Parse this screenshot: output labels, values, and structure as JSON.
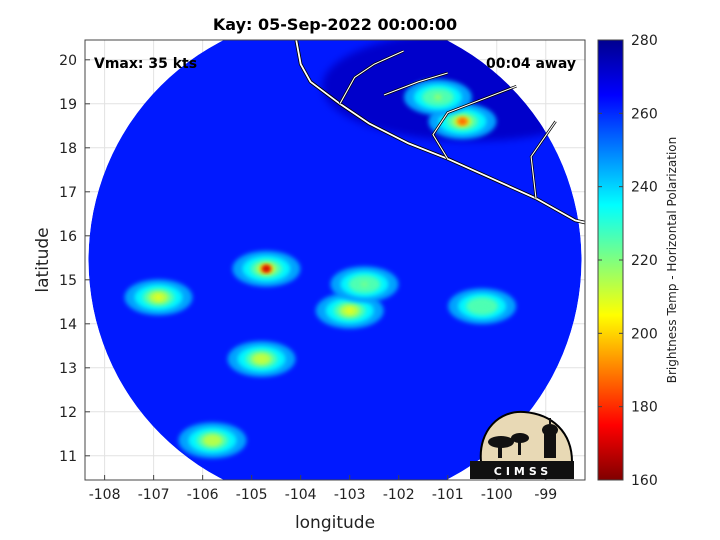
{
  "chart_data": {
    "type": "heatmap",
    "title": "Kay: 05-Sep-2022 00:00:00",
    "xlabel": "longitude",
    "ylabel": "latitude",
    "xlim": [
      -108.4,
      -98.2
    ],
    "ylim": [
      10.45,
      20.45
    ],
    "x_ticks": [
      "-108",
      "-107",
      "-106",
      "-105",
      "-104",
      "-103",
      "-102",
      "-101",
      "-100",
      "-99"
    ],
    "y_ticks": [
      "11",
      "12",
      "13",
      "14",
      "15",
      "16",
      "17",
      "18",
      "19",
      "20"
    ],
    "grid": true,
    "annotations": {
      "vmax": "Vmax: 35 kts",
      "time_offset": "00:04 away"
    },
    "colorbar": {
      "label": "Brightness Temp - Horizontal Polarization",
      "range": [
        160,
        280
      ],
      "ticks": [
        "160",
        "180",
        "200",
        "220",
        "240",
        "260",
        "280"
      ],
      "colormap": "jet"
    },
    "swath": {
      "center_lon": -103.3,
      "center_lat": 15.45,
      "radius_deg": 5.3,
      "background_tb": 262
    },
    "features": [
      {
        "lon": -104.7,
        "lat": 15.25,
        "tb": 168
      },
      {
        "lon": -103.0,
        "lat": 14.3,
        "tb": 208
      },
      {
        "lon": -102.7,
        "lat": 14.9,
        "tb": 222
      },
      {
        "lon": -106.9,
        "lat": 14.6,
        "tb": 208
      },
      {
        "lon": -104.8,
        "lat": 13.2,
        "tb": 212
      },
      {
        "lon": -105.8,
        "lat": 11.35,
        "tb": 214
      },
      {
        "lon": -100.3,
        "lat": 14.4,
        "tb": 226
      },
      {
        "lon": -100.7,
        "lat": 18.6,
        "tb": 186
      },
      {
        "lon": -101.2,
        "lat": 19.15,
        "tb": 218
      }
    ],
    "logo": {
      "text": "CIMSS"
    }
  },
  "colors": {
    "cold_end": "#800000",
    "warm_end": "#00008f",
    "coastline": "#ffffff",
    "land_border": "#000000"
  }
}
